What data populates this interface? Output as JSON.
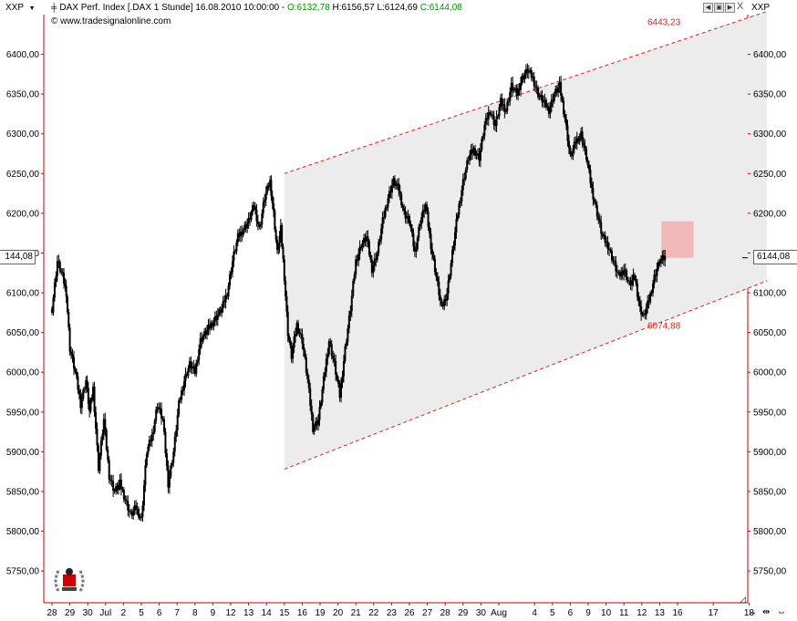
{
  "header": {
    "left_menu": "XXP",
    "right_menu": "XXP",
    "title": "DAX Perf. Index [.DAX  1 Stunde] 16.08.2010 10:00:00 -",
    "open_label": "O:6132,78",
    "high_label": "H:6156,57",
    "low_label": "L:6124,69",
    "close_label": "C:6144,08",
    "source": "www.tradesignalonline.com",
    "close_x": "X"
  },
  "last_price": {
    "right": "6144,08",
    "left": "144,08"
  },
  "colors": {
    "close_green": "#009900",
    "channel_red": "#e02020",
    "channel_fill": "#ececec",
    "target_box": "#f0b8b8",
    "axis": "#cc0000",
    "candle": "#000000"
  },
  "chart_data": {
    "type": "candlestick",
    "title": "DAX Perf. Index [.DAX  1 Stunde]",
    "ylim": [
      5710,
      6450
    ],
    "y_ticks": [
      5750,
      5800,
      5850,
      5900,
      5950,
      6000,
      6050,
      6100,
      6150,
      6200,
      6250,
      6300,
      6350,
      6400
    ],
    "y_tick_labels": [
      "5750,00",
      "5800,00",
      "5850,00",
      "5900,00",
      "5950,00",
      "6000,00",
      "6050,00",
      "6100,00",
      "6150,00",
      "6200,00",
      "6250,00",
      "6300,00",
      "6350,00",
      "6400,00"
    ],
    "x_tick_labels": [
      "28",
      "29",
      "30",
      "Jul",
      "2",
      "5",
      "6",
      "7",
      "8",
      "9",
      "12",
      "13",
      "14",
      "15",
      "16",
      "19",
      "20",
      "21",
      "22",
      "23",
      "26",
      "27",
      "28",
      "29",
      "30",
      "Aug",
      "4",
      "5",
      "6",
      "9",
      "10",
      "11",
      "12",
      "13",
      "16",
      "17",
      "18"
    ],
    "x_tick_index": [
      0,
      1,
      2,
      3,
      4,
      5,
      6,
      7,
      8,
      9,
      10,
      11,
      12,
      13,
      14,
      15,
      16,
      17,
      18,
      19,
      20,
      21,
      22,
      23,
      24,
      25,
      27,
      28,
      29,
      30,
      31,
      32,
      33,
      34,
      35,
      37,
      39
    ],
    "x_range": [
      -0.3,
      40
    ],
    "price_path": [
      [
        0,
        6080
      ],
      [
        0.3,
        6140
      ],
      [
        0.6,
        6120
      ],
      [
        0.8,
        6100
      ],
      [
        1.0,
        6030
      ],
      [
        1.3,
        6000
      ],
      [
        1.6,
        5960
      ],
      [
        1.9,
        5990
      ],
      [
        2.1,
        5950
      ],
      [
        2.3,
        5980
      ],
      [
        2.6,
        5880
      ],
      [
        2.9,
        5940
      ],
      [
        3.2,
        5870
      ],
      [
        3.5,
        5850
      ],
      [
        3.8,
        5860
      ],
      [
        4.1,
        5840
      ],
      [
        4.4,
        5820
      ],
      [
        4.7,
        5830
      ],
      [
        5.0,
        5815
      ],
      [
        5.3,
        5900
      ],
      [
        5.6,
        5920
      ],
      [
        5.9,
        5960
      ],
      [
        6.2,
        5940
      ],
      [
        6.5,
        5860
      ],
      [
        6.8,
        5900
      ],
      [
        7.1,
        5960
      ],
      [
        7.4,
        5990
      ],
      [
        7.7,
        6010
      ],
      [
        8.0,
        6000
      ],
      [
        8.3,
        6040
      ],
      [
        8.6,
        6050
      ],
      [
        8.9,
        6060
      ],
      [
        9.2,
        6070
      ],
      [
        9.5,
        6080
      ],
      [
        9.8,
        6100
      ],
      [
        10.1,
        6140
      ],
      [
        10.4,
        6170
      ],
      [
        10.7,
        6180
      ],
      [
        11.0,
        6190
      ],
      [
        11.3,
        6210
      ],
      [
        11.6,
        6180
      ],
      [
        11.9,
        6220
      ],
      [
        12.2,
        6240
      ],
      [
        12.4,
        6200
      ],
      [
        12.6,
        6150
      ],
      [
        12.8,
        6180
      ],
      [
        13.0,
        6120
      ],
      [
        13.2,
        6050
      ],
      [
        13.4,
        6020
      ],
      [
        13.7,
        6060
      ],
      [
        14.0,
        6040
      ],
      [
        14.3,
        5990
      ],
      [
        14.6,
        5930
      ],
      [
        14.9,
        5940
      ],
      [
        15.2,
        5990
      ],
      [
        15.5,
        6040
      ],
      [
        15.8,
        6010
      ],
      [
        16.1,
        5970
      ],
      [
        16.4,
        6030
      ],
      [
        16.7,
        6080
      ],
      [
        17.0,
        6140
      ],
      [
        17.3,
        6160
      ],
      [
        17.6,
        6170
      ],
      [
        17.9,
        6130
      ],
      [
        18.2,
        6150
      ],
      [
        18.5,
        6190
      ],
      [
        18.8,
        6220
      ],
      [
        19.1,
        6240
      ],
      [
        19.4,
        6230
      ],
      [
        19.7,
        6200
      ],
      [
        20.0,
        6190
      ],
      [
        20.3,
        6150
      ],
      [
        20.6,
        6190
      ],
      [
        20.9,
        6210
      ],
      [
        21.2,
        6160
      ],
      [
        21.5,
        6120
      ],
      [
        21.8,
        6080
      ],
      [
        22.1,
        6100
      ],
      [
        22.4,
        6150
      ],
      [
        22.7,
        6200
      ],
      [
        23.0,
        6240
      ],
      [
        23.3,
        6270
      ],
      [
        23.6,
        6280
      ],
      [
        23.9,
        6270
      ],
      [
        24.2,
        6310
      ],
      [
        24.5,
        6330
      ],
      [
        24.8,
        6310
      ],
      [
        25.1,
        6340
      ],
      [
        25.4,
        6330
      ],
      [
        25.7,
        6360
      ],
      [
        26.0,
        6350
      ],
      [
        26.3,
        6370
      ],
      [
        26.6,
        6380
      ],
      [
        26.9,
        6370
      ],
      [
        27.2,
        6350
      ],
      [
        27.5,
        6340
      ],
      [
        27.8,
        6330
      ],
      [
        28.1,
        6350
      ],
      [
        28.4,
        6360
      ],
      [
        28.7,
        6320
      ],
      [
        29.0,
        6270
      ],
      [
        29.3,
        6290
      ],
      [
        29.6,
        6300
      ],
      [
        29.9,
        6270
      ],
      [
        30.2,
        6230
      ],
      [
        30.5,
        6200
      ],
      [
        30.8,
        6170
      ],
      [
        31.1,
        6160
      ],
      [
        31.4,
        6140
      ],
      [
        31.7,
        6120
      ],
      [
        32.0,
        6130
      ],
      [
        32.3,
        6110
      ],
      [
        32.6,
        6120
      ],
      [
        32.9,
        6080
      ],
      [
        33.1,
        6070
      ],
      [
        33.4,
        6090
      ],
      [
        33.7,
        6120
      ],
      [
        34.0,
        6140
      ],
      [
        34.3,
        6144
      ]
    ],
    "channel": {
      "upper": [
        [
          13.0,
          6250
        ],
        [
          40,
          6454
        ]
      ],
      "lower": [
        [
          13.0,
          5878
        ],
        [
          40,
          6115
        ]
      ],
      "upper_label": "6443,23",
      "lower_label": "6074,88"
    },
    "target_zone": {
      "x0": 34.1,
      "x1": 35.9,
      "y0": 6144,
      "y1": 6190
    },
    "last_close": 6144.08
  }
}
